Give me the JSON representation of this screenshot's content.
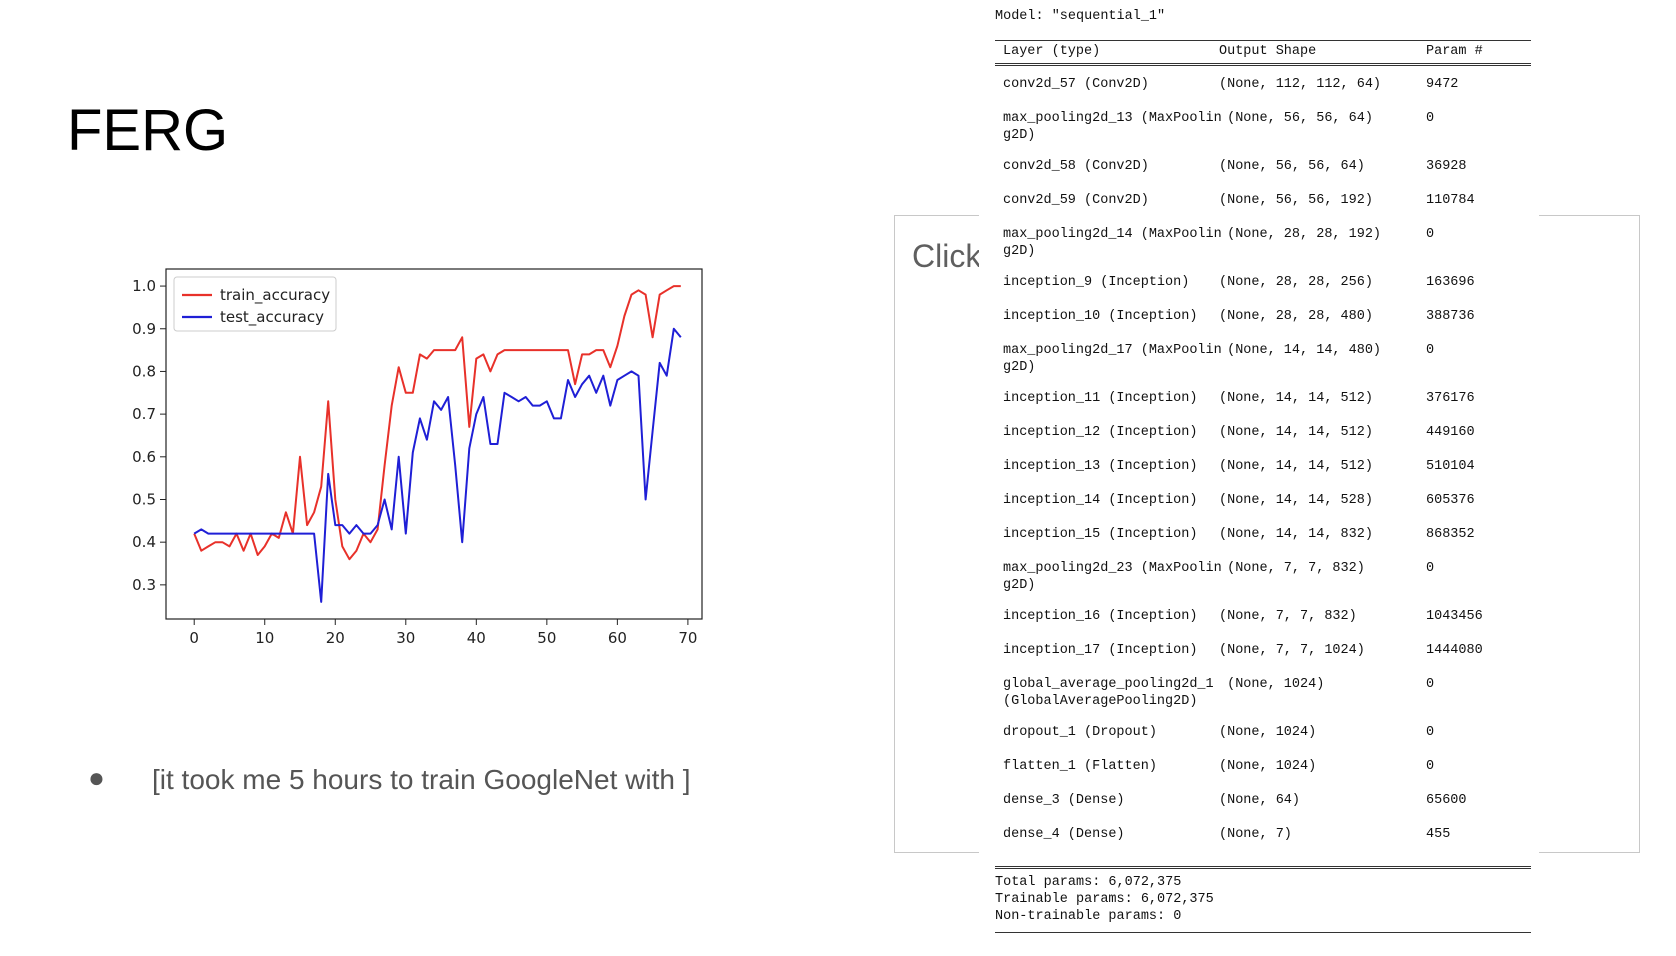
{
  "slide": {
    "title": "FERG",
    "placeholder": "Click to add text",
    "bullet": "[it took me 5 hours to train GoogleNet with ]"
  },
  "chart_data": {
    "type": "line",
    "xlim": [
      -4,
      72
    ],
    "ylim": [
      0.22,
      1.04
    ],
    "xticks": [
      0,
      10,
      20,
      30,
      40,
      50,
      60,
      70
    ],
    "yticks": [
      0.3,
      0.4,
      0.5,
      0.6,
      0.7,
      0.8,
      0.9,
      1.0
    ],
    "legend_position": "top-left",
    "series": [
      {
        "name": "train_accuracy",
        "color": "#e8312a",
        "x": [
          0,
          1,
          2,
          3,
          4,
          5,
          6,
          7,
          8,
          9,
          10,
          11,
          12,
          13,
          14,
          15,
          16,
          17,
          18,
          19,
          20,
          21,
          22,
          23,
          24,
          25,
          26,
          27,
          28,
          29,
          30,
          31,
          32,
          33,
          34,
          35,
          36,
          37,
          38,
          39,
          40,
          41,
          42,
          43,
          44,
          45,
          46,
          47,
          48,
          49,
          50,
          51,
          52,
          53,
          54,
          55,
          56,
          57,
          58,
          59,
          60,
          61,
          62,
          63,
          64,
          65,
          66,
          67,
          68,
          69
        ],
        "values": [
          0.42,
          0.38,
          0.39,
          0.4,
          0.4,
          0.39,
          0.42,
          0.38,
          0.42,
          0.37,
          0.39,
          0.42,
          0.41,
          0.47,
          0.42,
          0.6,
          0.44,
          0.47,
          0.53,
          0.73,
          0.5,
          0.39,
          0.36,
          0.38,
          0.42,
          0.4,
          0.43,
          0.58,
          0.72,
          0.81,
          0.75,
          0.75,
          0.84,
          0.83,
          0.85,
          0.85,
          0.85,
          0.85,
          0.88,
          0.67,
          0.83,
          0.84,
          0.8,
          0.84,
          0.85,
          0.85,
          0.85,
          0.85,
          0.85,
          0.85,
          0.85,
          0.85,
          0.85,
          0.85,
          0.77,
          0.84,
          0.84,
          0.85,
          0.85,
          0.81,
          0.86,
          0.93,
          0.98,
          0.99,
          0.98,
          0.88,
          0.98,
          0.99,
          1.0,
          1.0
        ]
      },
      {
        "name": "test_accuracy",
        "color": "#1f1fd6",
        "x": [
          0,
          1,
          2,
          3,
          4,
          5,
          6,
          7,
          8,
          9,
          10,
          11,
          12,
          13,
          14,
          15,
          16,
          17,
          18,
          19,
          20,
          21,
          22,
          23,
          24,
          25,
          26,
          27,
          28,
          29,
          30,
          31,
          32,
          33,
          34,
          35,
          36,
          37,
          38,
          39,
          40,
          41,
          42,
          43,
          44,
          45,
          46,
          47,
          48,
          49,
          50,
          51,
          52,
          53,
          54,
          55,
          56,
          57,
          58,
          59,
          60,
          61,
          62,
          63,
          64,
          65,
          66,
          67,
          68,
          69
        ],
        "values": [
          0.42,
          0.43,
          0.42,
          0.42,
          0.42,
          0.42,
          0.42,
          0.42,
          0.42,
          0.42,
          0.42,
          0.42,
          0.42,
          0.42,
          0.42,
          0.42,
          0.42,
          0.42,
          0.26,
          0.56,
          0.44,
          0.44,
          0.42,
          0.44,
          0.42,
          0.42,
          0.44,
          0.5,
          0.43,
          0.6,
          0.42,
          0.61,
          0.69,
          0.64,
          0.73,
          0.71,
          0.74,
          0.58,
          0.4,
          0.62,
          0.7,
          0.74,
          0.63,
          0.63,
          0.75,
          0.74,
          0.73,
          0.74,
          0.72,
          0.72,
          0.73,
          0.69,
          0.69,
          0.78,
          0.74,
          0.77,
          0.79,
          0.75,
          0.79,
          0.72,
          0.78,
          0.79,
          0.8,
          0.79,
          0.5,
          0.66,
          0.82,
          0.79,
          0.9,
          0.88
        ]
      }
    ]
  },
  "model_summary": {
    "model_line": "Model: \"sequential_1\"",
    "headers": {
      "layer": "Layer (type)",
      "shape": "Output Shape",
      "params": "Param #"
    },
    "rows": [
      {
        "layer": "conv2d_57 (Conv2D)",
        "shape": "(None, 112, 112, 64)",
        "params": "9472"
      },
      {
        "layer": "max_pooling2d_13 (MaxPoolin\ng2D)",
        "shape": " (None, 56, 56, 64)",
        "params": "0"
      },
      {
        "layer": "conv2d_58 (Conv2D)",
        "shape": "(None, 56, 56, 64)",
        "params": "36928"
      },
      {
        "layer": "conv2d_59 (Conv2D)",
        "shape": "(None, 56, 56, 192)",
        "params": "110784"
      },
      {
        "layer": "max_pooling2d_14 (MaxPoolin\ng2D)",
        "shape": " (None, 28, 28, 192)",
        "params": "0"
      },
      {
        "layer": "inception_9 (Inception)",
        "shape": "(None, 28, 28, 256)",
        "params": "163696"
      },
      {
        "layer": "inception_10 (Inception)",
        "shape": "(None, 28, 28, 480)",
        "params": "388736"
      },
      {
        "layer": "max_pooling2d_17 (MaxPoolin\ng2D)",
        "shape": " (None, 14, 14, 480)",
        "params": "0"
      },
      {
        "layer": "inception_11 (Inception)",
        "shape": "(None, 14, 14, 512)",
        "params": "376176"
      },
      {
        "layer": "inception_12 (Inception)",
        "shape": "(None, 14, 14, 512)",
        "params": "449160"
      },
      {
        "layer": "inception_13 (Inception)",
        "shape": "(None, 14, 14, 512)",
        "params": "510104"
      },
      {
        "layer": "inception_14 (Inception)",
        "shape": "(None, 14, 14, 528)",
        "params": "605376"
      },
      {
        "layer": "inception_15 (Inception)",
        "shape": "(None, 14, 14, 832)",
        "params": "868352"
      },
      {
        "layer": "max_pooling2d_23 (MaxPoolin\ng2D)",
        "shape": " (None, 7, 7, 832)",
        "params": "0"
      },
      {
        "layer": "inception_16 (Inception)",
        "shape": "(None, 7, 7, 832)",
        "params": "1043456"
      },
      {
        "layer": "inception_17 (Inception)",
        "shape": "(None, 7, 7, 1024)",
        "params": "1444080"
      },
      {
        "layer": "global_average_pooling2d_1\n(GlobalAveragePooling2D)",
        "shape": " (None, 1024)",
        "params": "0"
      },
      {
        "layer": "dropout_1 (Dropout)",
        "shape": "(None, 1024)",
        "params": "0"
      },
      {
        "layer": "flatten_1 (Flatten)",
        "shape": "(None, 1024)",
        "params": "0"
      },
      {
        "layer": "dense_3 (Dense)",
        "shape": "(None, 64)",
        "params": "65600"
      },
      {
        "layer": "dense_4 (Dense)",
        "shape": "(None, 7)",
        "params": "455"
      }
    ],
    "total": "Total params: 6,072,375",
    "trainable": "Trainable params: 6,072,375",
    "non_trainable": "Non-trainable params: 0"
  }
}
